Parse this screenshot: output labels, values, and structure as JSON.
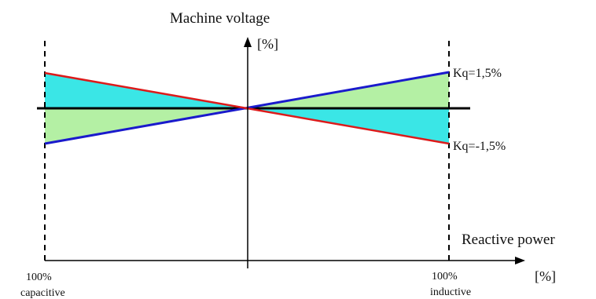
{
  "diagram": {
    "y_axis_title": "Machine voltage",
    "y_axis_unit": "[%]",
    "x_axis_title": "Reactive power",
    "x_axis_unit": "[%]",
    "line_upper_label": "Kq=1,5%",
    "line_lower_label": "Kq=-1,5%",
    "left_bound_label_1": "100%",
    "left_bound_label_2": "capacitive",
    "right_bound_label_1": "100%",
    "right_bound_label_2": "inductive"
  },
  "colors": {
    "positive_droop_line": "#1a1acc",
    "negative_droop_line": "#dd1a1a",
    "cyan_region": "#3ae6e6",
    "green_region": "#b4f0a4",
    "axis": "#000000",
    "reference_line": "#000000"
  },
  "icons": [
    "arrow-up-icon"
  ]
}
